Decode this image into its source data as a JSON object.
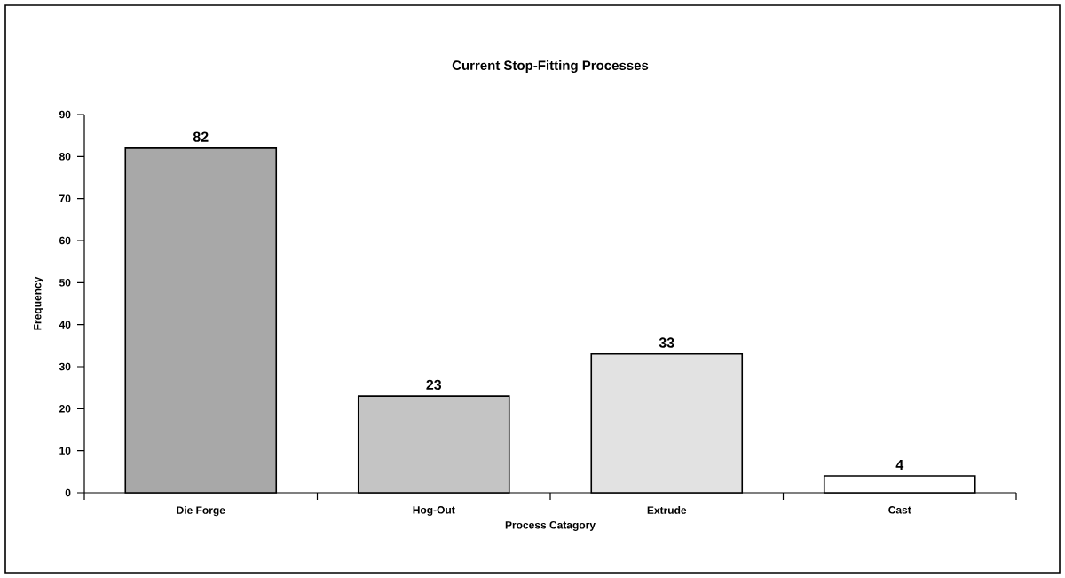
{
  "chart_data": {
    "type": "bar",
    "title": "Current Stop-Fitting Processes",
    "xlabel": "Process Catagory",
    "ylabel": "Frequency",
    "categories": [
      "Die Forge",
      "Hog-Out",
      "Extrude",
      "Cast"
    ],
    "values": [
      82,
      23,
      33,
      4
    ],
    "colors": [
      "#a8a8a8",
      "#c4c4c4",
      "#e2e2e2",
      "#ffffff"
    ],
    "ylim": [
      0,
      90
    ],
    "yticks": [
      0,
      10,
      20,
      30,
      40,
      50,
      60,
      70,
      80,
      90
    ],
    "data_labels": true
  }
}
